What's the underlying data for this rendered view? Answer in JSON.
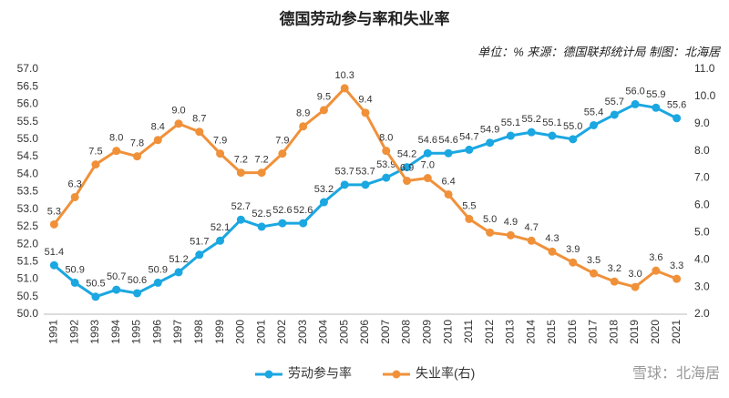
{
  "chart_data": {
    "type": "line",
    "title": "德国劳动参与率和失业率",
    "subtitle": "单位：% 来源：德国联邦统计局 制图：北海居",
    "watermark": "雪球：北海居",
    "categories": [
      "1991",
      "1992",
      "1993",
      "1994",
      "1995",
      "1996",
      "1997",
      "1998",
      "1999",
      "2000",
      "2001",
      "2002",
      "2003",
      "2004",
      "2005",
      "2006",
      "2007",
      "2008",
      "2009",
      "2010",
      "2011",
      "2012",
      "2013",
      "2014",
      "2015",
      "2016",
      "2017",
      "2018",
      "2019",
      "2020",
      "2021"
    ],
    "series": [
      {
        "name": "劳动参与率",
        "color": "#1ba7e1",
        "values": [
          51.4,
          50.9,
          50.5,
          50.7,
          50.6,
          50.9,
          51.2,
          51.7,
          52.1,
          52.7,
          52.5,
          52.6,
          52.6,
          53.2,
          53.7,
          53.7,
          53.9,
          54.2,
          54.6,
          54.6,
          54.7,
          54.9,
          55.1,
          55.2,
          55.1,
          55.0,
          55.4,
          55.7,
          56.0,
          55.9,
          55.6
        ],
        "value_labels": [
          "51.4",
          "50.9",
          "50.5",
          "50.7",
          "50.6",
          "50.9",
          "51.2",
          "51.7",
          "52.1",
          "52.7",
          "52.5",
          "52.6",
          "52.6",
          "53.2",
          "53.7",
          "53.7",
          "53.9",
          "54.2",
          "54.6",
          "54.6",
          "54.7",
          "54.9",
          "55.1",
          "55.2",
          "55.1",
          "55.0",
          "55.4",
          "55.7",
          "56.0",
          "55.9",
          "55.6"
        ]
      },
      {
        "name": "失业率(右)",
        "color": "#f0913a",
        "axis": "y2",
        "values": [
          5.3,
          6.3,
          7.5,
          8.0,
          7.8,
          8.4,
          9.0,
          8.7,
          7.9,
          7.2,
          7.2,
          7.9,
          8.9,
          9.5,
          10.3,
          9.4,
          8.0,
          6.9,
          7.0,
          6.4,
          5.5,
          5.0,
          4.9,
          4.7,
          4.3,
          3.9,
          3.5,
          3.2,
          3.0,
          3.6,
          3.3
        ],
        "value_labels": [
          "5.3",
          "6.3",
          "7.5",
          "8.0",
          "7.8",
          "8.4",
          "9.0",
          "8.7",
          "7.9",
          "7.2",
          "7.2",
          "7.9",
          "8.9",
          "9.5",
          "10.3",
          "9.4",
          "8.0",
          "6.9",
          "7.0",
          "6.4",
          "5.5",
          "5.0",
          "4.9",
          "4.7",
          "4.3",
          "3.9",
          "3.5",
          "3.2",
          "3.0",
          "3.6",
          "3.3"
        ]
      }
    ],
    "ylim": [
      50,
      57
    ],
    "yticks": [
      {
        "value": 50,
        "label": "50.0"
      },
      {
        "value": 50.5,
        "label": "50.5"
      },
      {
        "value": 51,
        "label": "51.0"
      },
      {
        "value": 51.5,
        "label": "51.5"
      },
      {
        "value": 52,
        "label": "52.0"
      },
      {
        "value": 52.5,
        "label": "52.5"
      },
      {
        "value": 53,
        "label": "53.0"
      },
      {
        "value": 53.5,
        "label": "53.5"
      },
      {
        "value": 54,
        "label": "54.0"
      },
      {
        "value": 54.5,
        "label": "54.5"
      },
      {
        "value": 55,
        "label": "55.0"
      },
      {
        "value": 55.5,
        "label": "55.5"
      },
      {
        "value": 56,
        "label": "56.0"
      },
      {
        "value": 56.5,
        "label": "56.5"
      },
      {
        "value": 57,
        "label": "57.0"
      }
    ],
    "y2lim": [
      2,
      11
    ],
    "y2ticks": [
      {
        "value": 2,
        "label": "2.0"
      },
      {
        "value": 3,
        "label": "3.0"
      },
      {
        "value": 4,
        "label": "4.0"
      },
      {
        "value": 5,
        "label": "5.0"
      },
      {
        "value": 6,
        "label": "6.0"
      },
      {
        "value": 7,
        "label": "7.0"
      },
      {
        "value": 8,
        "label": "8.0"
      },
      {
        "value": 9,
        "label": "9.0"
      },
      {
        "value": 10,
        "label": "10.0"
      },
      {
        "value": 11,
        "label": "11.0"
      }
    ],
    "legend": "bottom"
  }
}
